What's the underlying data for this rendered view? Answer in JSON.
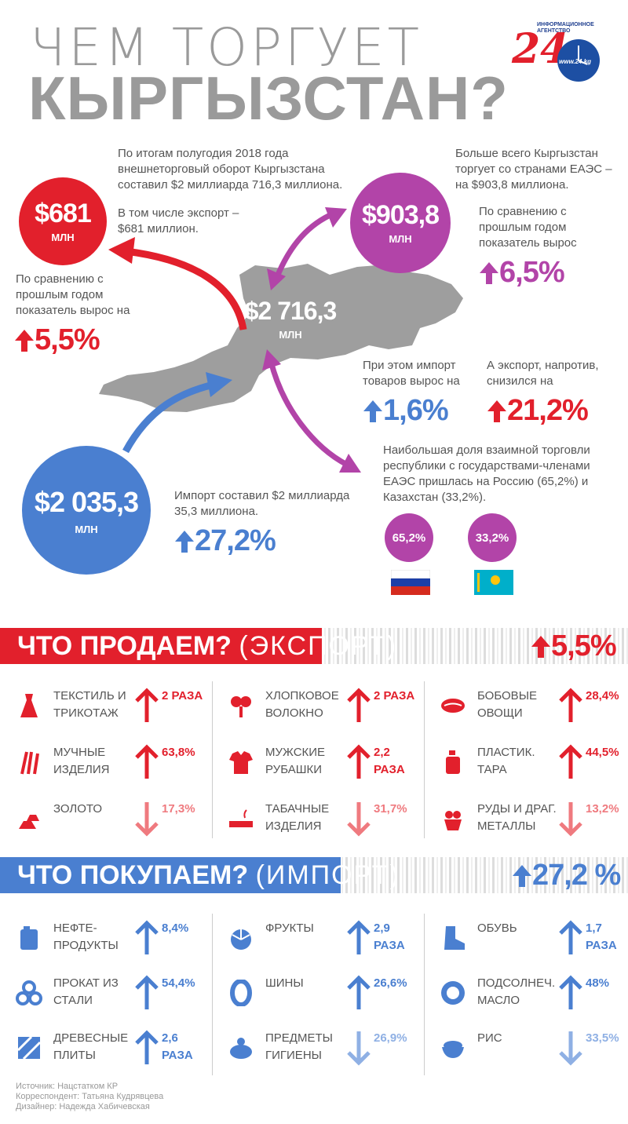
{
  "header": {
    "title_line1": "ЧЕМ ТОРГУЕТ",
    "title_line2": "КЫРГЫЗСТАН?",
    "logo_text": "ИНФОРМАЦИОННОЕ АГЕНТСТВО",
    "logo_number": "24",
    "logo_url": "www.24.kg"
  },
  "overview": {
    "total_text": "По итогам полугодия 2018 года внешнеторговый оборот Кыргызстана составил $2 миллиарда 716,3 миллиона.",
    "export_text": "В том числе экспорт – $681 миллион.",
    "export_value": "$681",
    "export_unit": "МЛН",
    "export_growth_text": "По сравнению с прошлым годом показатель вырос на",
    "export_growth": "5,5%",
    "total_value": "$2 716,3",
    "total_unit": "МЛН",
    "eaes_text": "Больше всего Кыргызстан торгует со странами ЕАЭС – на $903,8 миллиона.",
    "eaes_value": "$903,8",
    "eaes_unit": "МЛН",
    "eaes_growth_text": "По сравнению с прошлым годом показатель вырос",
    "eaes_growth": "6,5%",
    "eaes_import_text": "При этом импорт товаров вырос на",
    "eaes_import_growth": "1,6%",
    "eaes_export_text": "А экспорт, напротив, снизился на",
    "eaes_export_change": "21,2%",
    "share_text": "Наибольшая доля взаимной торговли республики с государствами-членами ЕАЭС пришлась на Россию (65,2%) и Казахстан (33,2%).",
    "russia_share": "65,2%",
    "kazakhstan_share": "33,2%",
    "import_value": "$2 035,3",
    "import_unit": "МЛН",
    "import_text": "Импорт составил $2 миллиарда 35,3 миллиона.",
    "import_growth": "27,2%"
  },
  "export_section": {
    "title_bold": "ЧТО ПРОДАЕМ?",
    "title_light": "(ЭКСПОРТ)",
    "growth": "5,5%",
    "items": [
      {
        "label": "ТЕКСТИЛЬ И ТРИКОТАЖ",
        "value": "2 РАЗА",
        "dir": "up",
        "icon": "dress-icon"
      },
      {
        "label": "ХЛОПКОВОЕ ВОЛОКНО",
        "value": "2 РАЗА",
        "dir": "up",
        "icon": "cotton-icon"
      },
      {
        "label": "БОБОВЫЕ ОВОЩИ",
        "value": "28,4%",
        "dir": "up",
        "icon": "bean-icon"
      },
      {
        "label": "МУЧНЫЕ ИЗДЕЛИЯ",
        "value": "63,8%",
        "dir": "up",
        "icon": "wheat-icon"
      },
      {
        "label": "МУЖСКИЕ РУБАШКИ",
        "value": "2,2 РАЗА",
        "dir": "up",
        "icon": "shirt-icon"
      },
      {
        "label": "ПЛАСТИК. ТАРА",
        "value": "44,5%",
        "dir": "up",
        "icon": "bottle-icon"
      },
      {
        "label": "ЗОЛОТО",
        "value": "17,3%",
        "dir": "down",
        "icon": "gold-icon"
      },
      {
        "label": "ТАБАЧНЫЕ ИЗДЕЛИЯ",
        "value": "31,7%",
        "dir": "down",
        "icon": "cigarette-icon"
      },
      {
        "label": "РУДЫ И ДРАГ. МЕТАЛЛЫ",
        "value": "13,2%",
        "dir": "down",
        "icon": "ore-icon"
      }
    ]
  },
  "import_section": {
    "title_bold": "ЧТО ПОКУПАЕМ?",
    "title_light": "(ИМПОРТ)",
    "growth": "27,2 %",
    "items": [
      {
        "label": "НЕФТЕ- ПРОДУКТЫ",
        "value": "8,4%",
        "dir": "up",
        "icon": "canister-icon"
      },
      {
        "label": "ФРУКТЫ",
        "value": "2,9 РАЗА",
        "dir": "up",
        "icon": "fruit-icon"
      },
      {
        "label": "ОБУВЬ",
        "value": "1,7 РАЗА",
        "dir": "up",
        "icon": "boot-icon"
      },
      {
        "label": "ПРОКАТ ИЗ СТАЛИ",
        "value": "54,4%",
        "dir": "up",
        "icon": "steel-icon"
      },
      {
        "label": "ШИНЫ",
        "value": "26,6%",
        "dir": "up",
        "icon": "tire-icon"
      },
      {
        "label": "ПОДСОЛНЕЧ. МАСЛО",
        "value": "48%",
        "dir": "up",
        "icon": "sunflower-icon"
      },
      {
        "label": "ДРЕВЕСНЫЕ ПЛИТЫ",
        "value": "2,6 РАЗА",
        "dir": "up",
        "icon": "wood-icon"
      },
      {
        "label": "ПРЕДМЕТЫ ГИГИЕНЫ",
        "value": "26,9%",
        "dir": "down",
        "icon": "hygiene-icon"
      },
      {
        "label": "РИС",
        "value": "33,5%",
        "dir": "down",
        "icon": "rice-icon"
      }
    ]
  },
  "footer": {
    "source": "Источник: Нацстатком КР",
    "correspondent": "Корреспондент: Татьяна Кудрявцева",
    "designer": "Дизайнер: Надежда Хабичевская"
  },
  "colors": {
    "red": "#e2202c",
    "blue": "#4a7fd0",
    "purple": "#b244a8",
    "gray": "#9a9a9a"
  }
}
